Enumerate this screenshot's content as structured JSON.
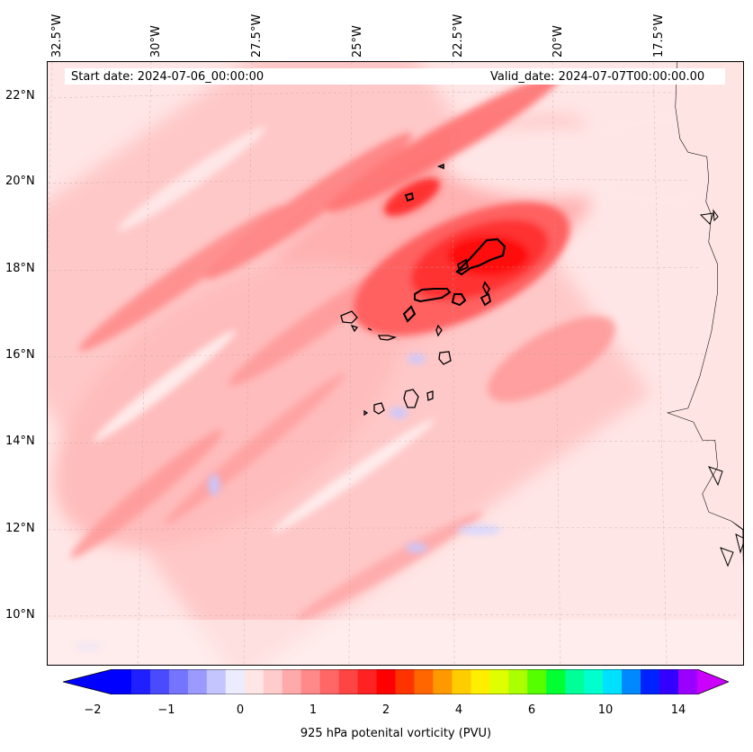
{
  "map": {
    "start_date": "Start date: 2024-07-06_00:00:00",
    "valid_date": "Valid_date: 2024-07-07T00:00:00.00",
    "lon_labels": [
      "32.5°W",
      "30°W",
      "27.5°W",
      "25°W",
      "22.5°W",
      "20°W",
      "17.5°W"
    ],
    "lat_labels": [
      "22°N",
      "20°N",
      "18°N",
      "16°N",
      "14°N",
      "12°N",
      "10°N"
    ]
  },
  "colorbar": {
    "ticks": [
      "−2",
      "−1",
      "0",
      "1",
      "2",
      "4",
      "6",
      "10",
      "14"
    ],
    "label": "925 hPa potenital vorticity (PVU)",
    "colors": [
      "#0000ff",
      "#2020ff",
      "#4a4aff",
      "#7474ff",
      "#9a9aff",
      "#c4c4ff",
      "#ececff",
      "#ffe6e6",
      "#ffcccc",
      "#ffaaaa",
      "#ff8888",
      "#ff6666",
      "#ff4444",
      "#ff2222",
      "#ff0000",
      "#ff3300",
      "#ff6600",
      "#ff9900",
      "#ffcc00",
      "#ffee00",
      "#ddff00",
      "#aaff00",
      "#55ff00",
      "#00ff33",
      "#00ff99",
      "#00ffcc",
      "#00e0ff",
      "#0088ff",
      "#0022ff",
      "#3300ff",
      "#9900ff"
    ],
    "extend_low": "#0000ff",
    "extend_high": "#cc00ff"
  }
}
